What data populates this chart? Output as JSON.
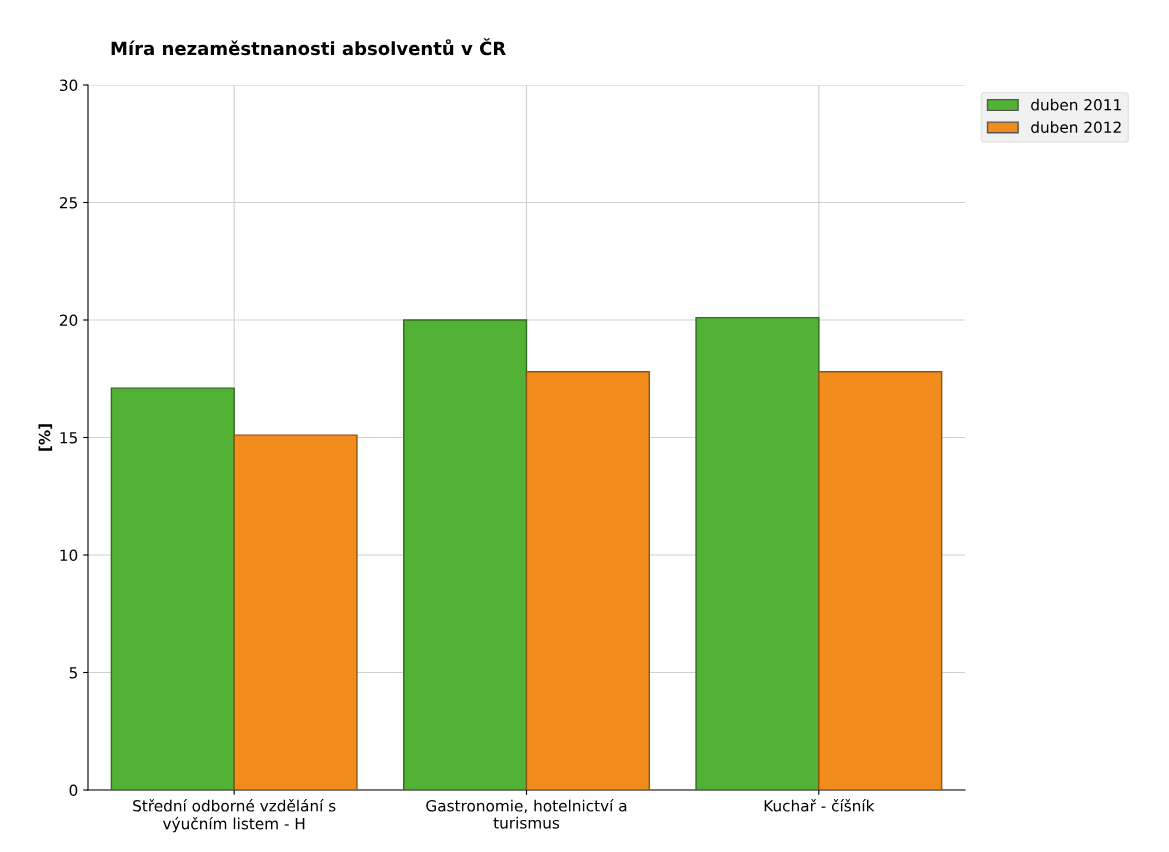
{
  "chart_data": {
    "type": "bar",
    "title": "Míra nezaměstnanosti absolventů v ČR",
    "ylabel": "[%]",
    "categories": [
      "Střední odborné vzdělání s\nvýučním listem - H",
      "Gastronomie, hotelnictví a\nturismus",
      "Kuchař - číšník"
    ],
    "series": [
      {
        "name": "duben 2011",
        "color": "#52b236",
        "values": [
          17.1,
          20.0,
          20.1
        ]
      },
      {
        "name": "duben 2012",
        "color": "#f28c1c",
        "values": [
          15.1,
          17.8,
          17.8
        ]
      }
    ],
    "ylim": [
      0,
      30
    ],
    "yticks": [
      0,
      5,
      10,
      15,
      20,
      25,
      30
    ],
    "grid": true,
    "legend": "top right"
  }
}
